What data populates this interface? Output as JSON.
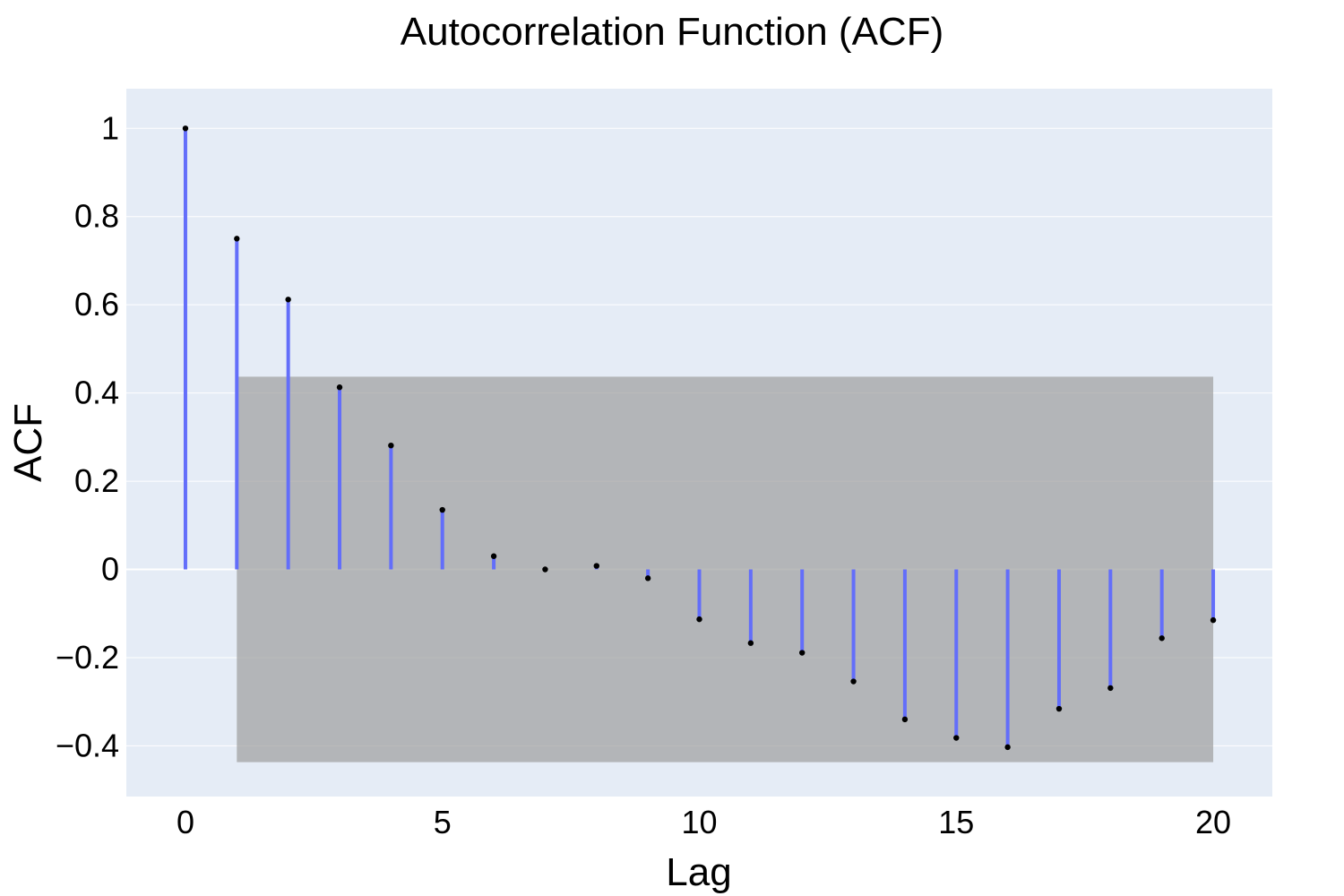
{
  "chart_data": {
    "type": "bar",
    "title": "Autocorrelation Function (ACF)",
    "xlabel": "Lag",
    "ylabel": "ACF",
    "x": [
      0,
      1,
      2,
      3,
      4,
      5,
      6,
      7,
      8,
      9,
      10,
      11,
      12,
      13,
      14,
      15,
      16,
      17,
      18,
      19,
      20
    ],
    "values": [
      1.0,
      0.75,
      0.612,
      0.413,
      0.281,
      0.135,
      0.03,
      0.0,
      0.008,
      -0.02,
      -0.113,
      -0.167,
      -0.189,
      -0.254,
      -0.34,
      -0.382,
      -0.403,
      -0.316,
      -0.269,
      -0.156,
      -0.115
    ],
    "confidence_band": {
      "x_range": [
        1,
        20
      ],
      "upper": 0.437,
      "lower": -0.437
    },
    "xlim": [
      -1.15,
      21.15
    ],
    "ylim": [
      -0.515,
      1.09
    ],
    "xticks": [
      0,
      5,
      10,
      15,
      20
    ],
    "yticks": [
      1,
      0.8,
      0.6,
      0.4,
      0.2,
      0,
      -0.2,
      -0.4
    ],
    "ytick_labels": [
      "1",
      "0.8",
      "0.6",
      "0.4",
      "0.2",
      "0",
      "−0.2",
      "−0.4"
    ],
    "grid": true,
    "colors": {
      "plot_background": "#e5ecf6",
      "stem": "#636efa",
      "marker": "#000000",
      "band": "#a0a0a0",
      "grid": "#ffffff"
    }
  }
}
